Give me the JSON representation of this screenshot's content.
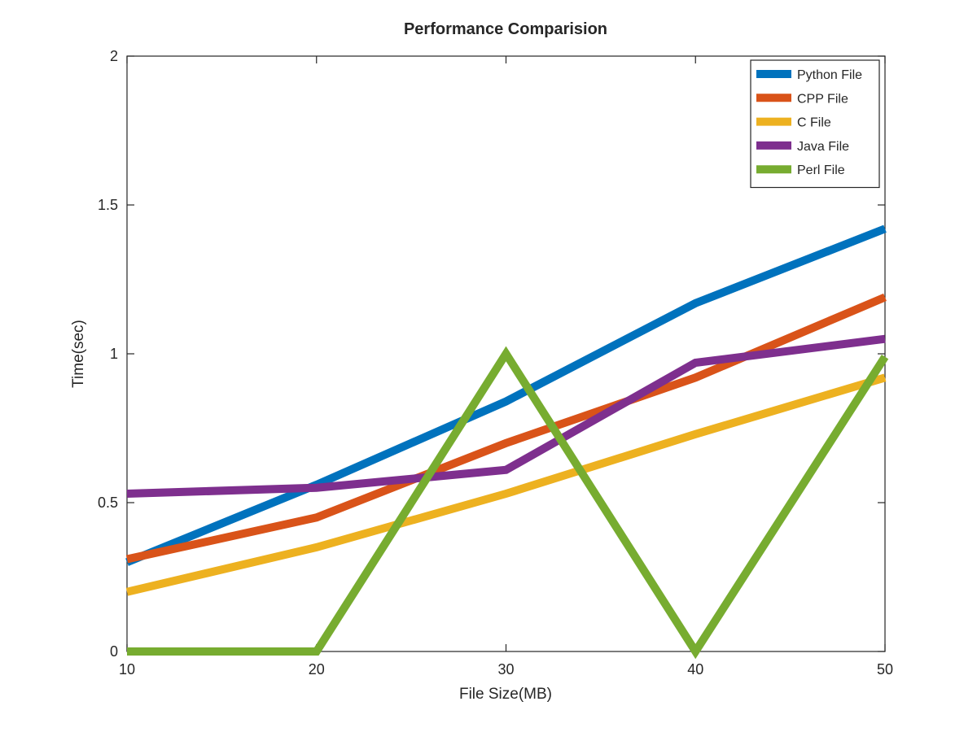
{
  "chart_data": {
    "type": "line",
    "title": "Performance Comparision",
    "xlabel": "File Size(MB)",
    "ylabel": "Time(sec)",
    "xlim": [
      10,
      50
    ],
    "ylim": [
      0,
      2
    ],
    "xticks": [
      10,
      20,
      30,
      40,
      50
    ],
    "yticks": [
      0,
      0.5,
      1,
      1.5,
      2
    ],
    "ytick_labels": [
      "0",
      "0.5",
      "1",
      "1.5",
      "2"
    ],
    "grid": false,
    "legend_position": "top-right",
    "x": [
      10,
      20,
      30,
      40,
      50
    ],
    "series": [
      {
        "name": "Python File",
        "color": "#0072BD",
        "values": [
          0.3,
          0.56,
          0.84,
          1.17,
          1.42
        ]
      },
      {
        "name": "CPP File",
        "color": "#D95319",
        "values": [
          0.31,
          0.45,
          0.7,
          0.92,
          1.19
        ]
      },
      {
        "name": "C File",
        "color": "#EDB120",
        "values": [
          0.2,
          0.35,
          0.53,
          0.73,
          0.92
        ]
      },
      {
        "name": "Java File",
        "color": "#7E2F8E",
        "values": [
          0.53,
          0.55,
          0.61,
          0.97,
          1.05
        ]
      },
      {
        "name": "Perl File",
        "color": "#77AC30",
        "values": [
          0.0,
          0.0,
          1.0,
          0.0,
          0.99
        ]
      }
    ]
  }
}
